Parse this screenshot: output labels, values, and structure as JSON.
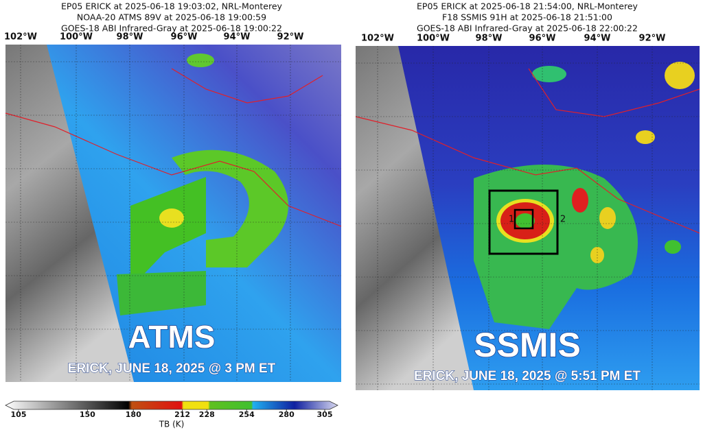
{
  "panels": [
    {
      "header": [
        "EP05 ERICK at 2025-06-18 19:03:02, NRL-Monterey",
        "NOAA-20 ATMS 89V at 2025-06-18 19:00:59",
        "GOES-18 ABI Infrared-Gray at 2025-06-18 19:00:22"
      ],
      "longitudes": [
        "102°W",
        "100°W",
        "98°W",
        "96°W",
        "94°W",
        "92°W"
      ],
      "sensor": "ATMS",
      "caption": "ERICK, JUNE 18, 2025 @ 3 PM ET"
    },
    {
      "header": [
        "EP05 ERICK at 2025-06-18 21:54:00, NRL-Monterey",
        "F18 SSMIS 91H at 2025-06-18 21:51:00",
        "GOES-18 ABI Infrared-Gray at 2025-06-18 22:00:22"
      ],
      "longitudes": [
        "102°W",
        "100°W",
        "98°W",
        "96°W",
        "94°W",
        "92°W"
      ],
      "sensor": "SSMIS",
      "caption": "ERICK, JUNE 18, 2025 @ 5:51 PM ET",
      "box_labels": [
        "1",
        "2"
      ]
    }
  ],
  "colorbar": {
    "range": [
      105,
      305
    ],
    "ticks": [
      105,
      150,
      180,
      212,
      228,
      254,
      280,
      305
    ],
    "label": "TB (K)"
  }
}
